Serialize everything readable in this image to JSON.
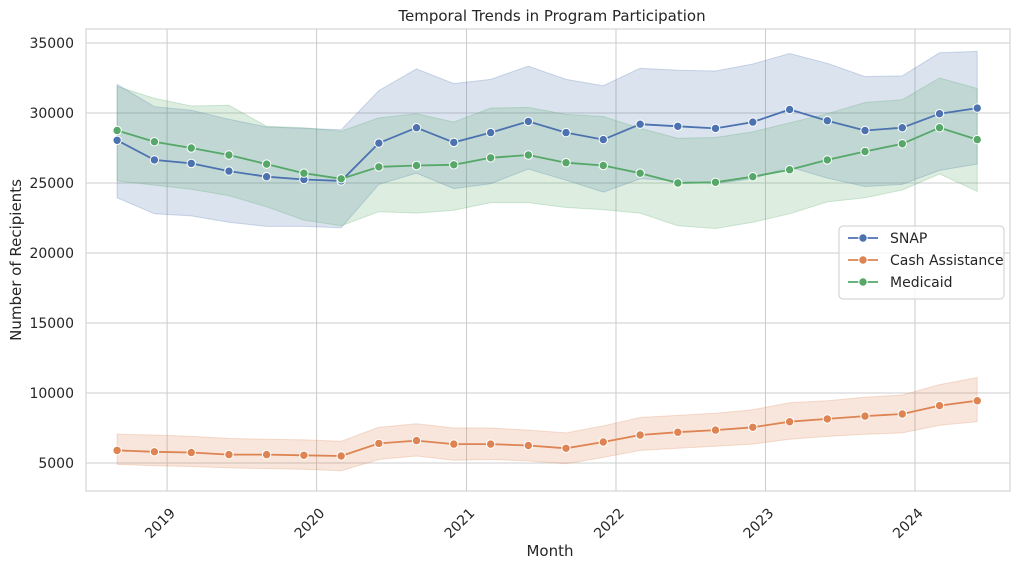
{
  "chart_data": {
    "type": "line",
    "title": "Temporal Trends in Program Participation",
    "xlabel": "Month",
    "ylabel": "Number of Recipients",
    "xlim": [
      "2018-06-17",
      "2024-08-20"
    ],
    "ylim": [
      3000,
      36000
    ],
    "x_ticks": [
      {
        "date": "2019-01-01",
        "label": "2019"
      },
      {
        "date": "2020-01-01",
        "label": "2020"
      },
      {
        "date": "2021-01-01",
        "label": "2021"
      },
      {
        "date": "2022-01-01",
        "label": "2022"
      },
      {
        "date": "2023-01-01",
        "label": "2023"
      },
      {
        "date": "2024-01-01",
        "label": "2024"
      }
    ],
    "y_ticks": [
      5000,
      10000,
      15000,
      20000,
      25000,
      30000,
      35000
    ],
    "x_tick_rotation": 45,
    "grid": true,
    "legend_position": "center-right",
    "x": [
      "2018-09-01",
      "2018-12-01",
      "2019-03-01",
      "2019-06-01",
      "2019-09-01",
      "2019-12-01",
      "2020-03-01",
      "2020-06-01",
      "2020-09-01",
      "2020-12-01",
      "2021-03-01",
      "2021-06-01",
      "2021-09-01",
      "2021-12-01",
      "2022-03-01",
      "2022-06-01",
      "2022-09-01",
      "2022-12-01",
      "2023-03-01",
      "2023-06-01",
      "2023-09-01",
      "2023-12-01",
      "2024-03-01",
      "2024-06-01"
    ],
    "series": [
      {
        "name": "SNAP",
        "color": "#4c72b0",
        "values": [
          28050,
          26650,
          26400,
          25850,
          25450,
          25250,
          25150,
          27850,
          28950,
          27900,
          28600,
          29400,
          28600,
          28100,
          29200,
          29050,
          28900,
          29350,
          30250,
          29450,
          28750,
          28950,
          29950,
          30350
        ],
        "lower": [
          23950,
          22800,
          22650,
          22200,
          21900,
          21900,
          21800,
          24900,
          25700,
          24600,
          24950,
          26000,
          25200,
          24350,
          25300,
          25150,
          24950,
          25300,
          26150,
          25350,
          24750,
          24900,
          25900,
          26350
        ],
        "upper": [
          32050,
          30450,
          30200,
          29550,
          29000,
          28900,
          28800,
          31600,
          33150,
          32100,
          32400,
          33350,
          32400,
          31950,
          33200,
          33050,
          33000,
          33500,
          34250,
          33550,
          32600,
          32650,
          34300,
          34400
        ]
      },
      {
        "name": "Cash Assistance",
        "color": "#dd8452",
        "values": [
          5900,
          5800,
          5750,
          5600,
          5600,
          5550,
          5500,
          6400,
          6600,
          6350,
          6350,
          6250,
          6050,
          6500,
          7000,
          7200,
          7350,
          7550,
          7950,
          8150,
          8350,
          8500,
          9100,
          9450
        ],
        "lower": [
          4900,
          4800,
          4750,
          4650,
          4600,
          4550,
          4450,
          5250,
          5500,
          5200,
          5250,
          5150,
          4950,
          5400,
          5900,
          6050,
          6200,
          6350,
          6700,
          6900,
          7050,
          7150,
          7700,
          7950
        ],
        "upper": [
          7050,
          7000,
          6900,
          6750,
          6700,
          6650,
          6550,
          7550,
          7800,
          7500,
          7500,
          7350,
          7150,
          7650,
          8250,
          8400,
          8550,
          8800,
          9300,
          9450,
          9700,
          9850,
          10600,
          11100
        ]
      },
      {
        "name": "Medicaid",
        "color": "#55a868",
        "values": [
          28750,
          27950,
          27500,
          27000,
          26350,
          25700,
          25300,
          26150,
          26250,
          26300,
          26800,
          27000,
          26450,
          26250,
          25700,
          25000,
          25050,
          25450,
          25950,
          26650,
          27250,
          27800,
          28950,
          28100
        ],
        "lower": [
          25150,
          24850,
          24550,
          24100,
          23300,
          22350,
          21950,
          22950,
          22850,
          23050,
          23600,
          23600,
          23250,
          23100,
          22850,
          21950,
          21750,
          22200,
          22800,
          23650,
          23950,
          24500,
          25650,
          24400
        ],
        "upper": [
          31900,
          31050,
          30500,
          30550,
          29050,
          28950,
          28700,
          29650,
          29950,
          29350,
          30350,
          30400,
          29900,
          29750,
          28900,
          28200,
          28250,
          28650,
          29300,
          29950,
          30750,
          30950,
          32500,
          31750
        ]
      }
    ]
  }
}
